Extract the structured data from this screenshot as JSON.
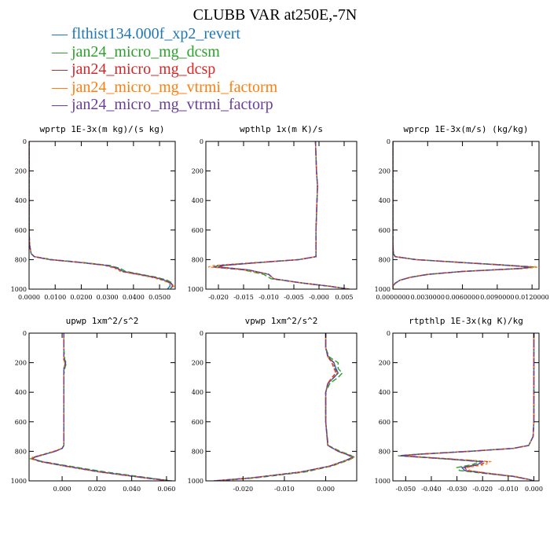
{
  "title": "CLUBB VAR at250E,-7N",
  "legend": [
    {
      "name": "flthist134.000f_xp2_revert",
      "color": "#1f77b4"
    },
    {
      "name": "jan24_micro_mg_dcsm",
      "color": "#2ca02c"
    },
    {
      "name": "jan24_micro_mg_dcsp",
      "color": "#d62728"
    },
    {
      "name": "jan24_micro_mg_vtrmi_factorm",
      "color": "#ff7f0e"
    },
    {
      "name": "jan24_micro_mg_vtrmi_factorp",
      "color": "#6a3d9a"
    }
  ],
  "chart_data": [
    {
      "type": "line",
      "title": "wprtp  1E-3x(m kg)/(s kg)",
      "xlim": [
        0.0,
        0.056
      ],
      "ylim": [
        1000,
        0
      ],
      "xticks": [
        0.0,
        0.01,
        0.02,
        0.03,
        0.04,
        0.05
      ],
      "xtick_labels": [
        "0.0000",
        "0.0100",
        "0.0200",
        "0.0300",
        "0.0400",
        "0.0500"
      ],
      "yticks": [
        0,
        200,
        400,
        600,
        800,
        1000
      ],
      "ytick_labels": [
        "0",
        "200",
        "400",
        "600",
        "800",
        "1000"
      ],
      "y": [
        0,
        200,
        400,
        600,
        700,
        760,
        780,
        800,
        820,
        840,
        860,
        880,
        900,
        920,
        940,
        960,
        980,
        1000
      ],
      "series": [
        {
          "values": [
            0,
            0,
            0,
            0,
            0.0002,
            0.0008,
            0.002,
            0.008,
            0.02,
            0.03,
            0.034,
            0.036,
            0.042,
            0.048,
            0.052,
            0.054,
            0.054,
            0.053
          ]
        },
        {
          "values": [
            0,
            0,
            0,
            0,
            0.0002,
            0.0008,
            0.002,
            0.009,
            0.021,
            0.031,
            0.035,
            0.037,
            0.043,
            0.049,
            0.053,
            0.055,
            0.055,
            0.054
          ]
        },
        {
          "values": [
            0,
            0,
            0,
            0,
            0.0002,
            0.0008,
            0.002,
            0.008,
            0.02,
            0.03,
            0.034,
            0.035,
            0.042,
            0.048,
            0.052,
            0.0545,
            0.055,
            0.0545
          ]
        },
        {
          "values": [
            0,
            0,
            0,
            0,
            0.0002,
            0.0008,
            0.002,
            0.008,
            0.02,
            0.029,
            0.033,
            0.035,
            0.041,
            0.047,
            0.051,
            0.054,
            0.0555,
            0.055
          ]
        },
        {
          "values": [
            0,
            0,
            0,
            0,
            0.0002,
            0.0008,
            0.002,
            0.008,
            0.02,
            0.03,
            0.034,
            0.036,
            0.042,
            0.048,
            0.052,
            0.0545,
            0.055,
            0.054
          ]
        }
      ]
    },
    {
      "type": "line",
      "title": "wpthlp  1x(m K)/s",
      "xlim": [
        -0.0225,
        0.0075
      ],
      "ylim": [
        1000,
        0
      ],
      "xticks": [
        -0.02,
        -0.015,
        -0.01,
        -0.005,
        0.0,
        0.005
      ],
      "xtick_labels": [
        "-0.020",
        "-0.015",
        "-0.010",
        "-0.005",
        "-0.000",
        "0.005"
      ],
      "yticks": [
        0,
        200,
        400,
        600,
        800,
        1000
      ],
      "ytick_labels": [
        "0",
        "200",
        "400",
        "600",
        "800",
        "1000"
      ],
      "y": [
        0,
        100,
        200,
        300,
        400,
        500,
        600,
        700,
        780,
        800,
        820,
        840,
        850,
        870,
        900,
        930,
        960,
        980,
        1000
      ],
      "series": [
        {
          "values": [
            -0.0007,
            -0.0006,
            -0.0005,
            -0.0003,
            -0.0004,
            -0.0005,
            -0.0006,
            -0.0006,
            -0.0006,
            -0.004,
            -0.012,
            -0.019,
            -0.02,
            -0.014,
            -0.01,
            -0.009,
            -0.003,
            0.002,
            0.006
          ]
        },
        {
          "values": [
            -0.0007,
            -0.0006,
            -0.0005,
            -0.0003,
            -0.0004,
            -0.0005,
            -0.0006,
            -0.0006,
            -0.0006,
            -0.004,
            -0.012,
            -0.02,
            -0.021,
            -0.015,
            -0.011,
            -0.0095,
            -0.003,
            0.002,
            0.006
          ]
        },
        {
          "values": [
            -0.0007,
            -0.0006,
            -0.0005,
            -0.0003,
            -0.0004,
            -0.0005,
            -0.0006,
            -0.0006,
            -0.0006,
            -0.004,
            -0.012,
            -0.019,
            -0.02,
            -0.014,
            -0.01,
            -0.009,
            -0.003,
            0.002,
            0.006
          ]
        },
        {
          "values": [
            -0.0007,
            -0.0006,
            -0.0005,
            -0.0003,
            -0.0004,
            -0.0005,
            -0.0006,
            -0.0006,
            -0.0006,
            -0.004,
            -0.013,
            -0.021,
            -0.022,
            -0.015,
            -0.01,
            -0.009,
            -0.003,
            0.002,
            0.006
          ]
        },
        {
          "values": [
            -0.0007,
            -0.0006,
            -0.0005,
            -0.0003,
            -0.0004,
            -0.0005,
            -0.0006,
            -0.0006,
            -0.0006,
            -0.004,
            -0.012,
            -0.02,
            -0.021,
            -0.014,
            -0.01,
            -0.009,
            -0.003,
            0.002,
            0.006
          ]
        }
      ]
    },
    {
      "type": "line",
      "title": "wprcp  1E-3x(m/s) (kg/kg)",
      "xlim": [
        0.0,
        0.0126
      ],
      "ylim": [
        1000,
        0
      ],
      "xticks": [
        0.0,
        0.003,
        0.006,
        0.009,
        0.012
      ],
      "xtick_labels": [
        "0.0000000",
        "0.0030000",
        "0.0060000",
        "0.0090000",
        "0.0120000"
      ],
      "yticks": [
        0,
        200,
        400,
        600,
        800,
        1000
      ],
      "ytick_labels": [
        "0",
        "200",
        "400",
        "600",
        "800",
        "1000"
      ],
      "y": [
        0,
        200,
        400,
        600,
        700,
        760,
        780,
        800,
        820,
        840,
        850,
        860,
        880,
        900,
        920,
        940,
        960,
        980,
        1000
      ],
      "series": [
        {
          "values": [
            0,
            0,
            0,
            0,
            0,
            5e-05,
            0.0002,
            0.002,
            0.006,
            0.01,
            0.0118,
            0.011,
            0.006,
            0.003,
            0.0015,
            0.0006,
            0.0002,
            0,
            0
          ]
        },
        {
          "values": [
            0,
            0,
            0,
            0,
            0,
            5e-05,
            0.0002,
            0.002,
            0.0062,
            0.0104,
            0.0122,
            0.0112,
            0.0062,
            0.0031,
            0.0015,
            0.0006,
            0.0002,
            0,
            0
          ]
        },
        {
          "values": [
            0,
            0,
            0,
            0,
            0,
            5e-05,
            0.0002,
            0.002,
            0.006,
            0.0102,
            0.012,
            0.011,
            0.006,
            0.003,
            0.0015,
            0.0006,
            0.0002,
            0,
            0
          ]
        },
        {
          "values": [
            0,
            0,
            0,
            0,
            0,
            5e-05,
            0.0002,
            0.0019,
            0.0058,
            0.01,
            0.0125,
            0.0115,
            0.0061,
            0.003,
            0.0015,
            0.0006,
            0.0002,
            0,
            0
          ]
        },
        {
          "values": [
            0,
            0,
            0,
            0,
            0,
            5e-05,
            0.0002,
            0.002,
            0.006,
            0.0101,
            0.0119,
            0.011,
            0.006,
            0.003,
            0.0015,
            0.0006,
            0.0002,
            0,
            0
          ]
        }
      ]
    },
    {
      "type": "line",
      "title": "upwp  1xm^2/s^2",
      "xlim": [
        -0.019,
        0.065
      ],
      "ylim": [
        1000,
        0
      ],
      "xticks": [
        0.0,
        0.02,
        0.04,
        0.06
      ],
      "xtick_labels": [
        "0.000",
        "0.020",
        "0.040",
        "0.060"
      ],
      "yticks": [
        0,
        200,
        400,
        600,
        800,
        1000
      ],
      "ytick_labels": [
        "0",
        "200",
        "400",
        "600",
        "800",
        "1000"
      ],
      "y": [
        0,
        100,
        180,
        200,
        240,
        280,
        400,
        600,
        760,
        780,
        800,
        820,
        840,
        850,
        870,
        900,
        940,
        980,
        1000
      ],
      "series": [
        {
          "values": [
            0.001,
            0.001,
            0.001,
            0.002,
            0.001,
            0.001,
            0.001,
            0.001,
            0.001,
            0,
            -0.004,
            -0.01,
            -0.016,
            -0.017,
            -0.012,
            0.002,
            0.022,
            0.048,
            0.062
          ]
        },
        {
          "values": [
            0.001,
            0.001,
            0.0015,
            0.0025,
            0.0015,
            0.001,
            0.001,
            0.001,
            0.001,
            0,
            -0.004,
            -0.01,
            -0.016,
            -0.018,
            -0.011,
            0.004,
            0.025,
            0.05,
            0.063
          ]
        },
        {
          "values": [
            0.001,
            0.001,
            0.001,
            0.002,
            0.001,
            0.001,
            0.001,
            0.001,
            0.001,
            0,
            -0.004,
            -0.01,
            -0.016,
            -0.017,
            -0.012,
            0.002,
            0.022,
            0.048,
            0.062
          ]
        },
        {
          "values": [
            0.001,
            0.001,
            0.001,
            0.0015,
            0.001,
            0.001,
            0.001,
            0.001,
            0.001,
            0,
            -0.005,
            -0.011,
            -0.017,
            -0.018,
            -0.013,
            0.001,
            0.021,
            0.047,
            0.061
          ]
        },
        {
          "values": [
            0.001,
            0.001,
            0.001,
            0.002,
            0.001,
            0.001,
            0.001,
            0.001,
            0.001,
            0,
            -0.004,
            -0.01,
            -0.016,
            -0.017,
            -0.012,
            0.002,
            0.022,
            0.048,
            0.062
          ]
        }
      ]
    },
    {
      "type": "line",
      "title": "vpwp  1xm^2/s^2",
      "xlim": [
        -0.029,
        0.0075
      ],
      "ylim": [
        1000,
        0
      ],
      "xticks": [
        -0.02,
        -0.01,
        0.0
      ],
      "xtick_labels": [
        "-0.020",
        "-0.010",
        "0.000"
      ],
      "yticks": [
        0,
        200,
        400,
        600,
        800,
        1000
      ],
      "ytick_labels": [
        "0",
        "200",
        "400",
        "600",
        "800",
        "1000"
      ],
      "y": [
        0,
        100,
        160,
        200,
        240,
        270,
        300,
        340,
        400,
        600,
        760,
        800,
        820,
        840,
        860,
        900,
        940,
        980,
        1000
      ],
      "series": [
        {
          "values": [
            0,
            0,
            0.0005,
            0.002,
            0.0025,
            0.003,
            0.002,
            0.0005,
            0,
            0,
            0.0005,
            0.003,
            0.005,
            0.0065,
            0.005,
            0.001,
            -0.006,
            -0.018,
            -0.027
          ]
        },
        {
          "values": [
            0,
            0,
            0.0008,
            0.003,
            0.003,
            0.004,
            0.003,
            0.001,
            0,
            0,
            0.0006,
            0.0035,
            0.0055,
            0.007,
            0.0055,
            0.0015,
            -0.005,
            -0.017,
            -0.026
          ]
        },
        {
          "values": [
            0,
            0,
            0.0005,
            0.0015,
            0.002,
            0.0025,
            0.0015,
            0.0005,
            0,
            0,
            0.0005,
            0.003,
            0.005,
            0.0065,
            0.005,
            0.001,
            -0.006,
            -0.018,
            -0.027
          ]
        },
        {
          "values": [
            0,
            0,
            0.0005,
            0.0018,
            0.002,
            0.0028,
            0.0018,
            0.0005,
            0,
            0,
            0.0005,
            0.003,
            0.0052,
            0.0068,
            0.0052,
            0.0012,
            -0.006,
            -0.018,
            -0.027
          ]
        },
        {
          "values": [
            0,
            0,
            0.0006,
            0.002,
            0.0022,
            0.003,
            0.002,
            0.0006,
            0,
            0,
            0.0005,
            0.003,
            0.005,
            0.0066,
            0.005,
            0.001,
            -0.006,
            -0.018,
            -0.027
          ]
        }
      ]
    },
    {
      "type": "line",
      "title": "rtpthlp  1E-3x(kg K)/kg",
      "xlim": [
        -0.055,
        0.002
      ],
      "ylim": [
        1000,
        0
      ],
      "xticks": [
        -0.05,
        -0.04,
        -0.03,
        -0.02,
        -0.01,
        0.0
      ],
      "xtick_labels": [
        "-0.050",
        "-0.040",
        "-0.030",
        "-0.020",
        "-0.010",
        "0.000"
      ],
      "yticks": [
        0,
        200,
        400,
        600,
        800,
        1000
      ],
      "ytick_labels": [
        "0",
        "200",
        "400",
        "600",
        "800",
        "1000"
      ],
      "y": [
        0,
        200,
        400,
        600,
        700,
        760,
        780,
        800,
        820,
        830,
        850,
        870,
        890,
        910,
        930,
        950,
        970,
        990,
        1000
      ],
      "series": [
        {
          "values": [
            0,
            0,
            0,
            0,
            -0.0003,
            -0.002,
            -0.008,
            -0.025,
            -0.045,
            -0.052,
            -0.035,
            -0.02,
            -0.022,
            -0.028,
            -0.027,
            -0.018,
            -0.008,
            -0.002,
            0
          ]
        },
        {
          "values": [
            0,
            0,
            0,
            0,
            -0.0003,
            -0.002,
            -0.008,
            -0.026,
            -0.046,
            -0.053,
            -0.036,
            -0.021,
            -0.024,
            -0.03,
            -0.029,
            -0.019,
            -0.008,
            -0.002,
            0
          ]
        },
        {
          "values": [
            0,
            0,
            0,
            0,
            -0.0003,
            -0.002,
            -0.008,
            -0.025,
            -0.045,
            -0.052,
            -0.034,
            -0.018,
            -0.021,
            -0.027,
            -0.026,
            -0.017,
            -0.008,
            -0.002,
            0
          ]
        },
        {
          "values": [
            0,
            0,
            0,
            0,
            -0.0003,
            -0.002,
            -0.008,
            -0.025,
            -0.044,
            -0.051,
            -0.033,
            -0.017,
            -0.019,
            -0.026,
            -0.025,
            -0.017,
            -0.007,
            -0.002,
            0
          ]
        },
        {
          "values": [
            0,
            0,
            0,
            0,
            -0.0003,
            -0.002,
            -0.008,
            -0.025,
            -0.045,
            -0.052,
            -0.035,
            -0.02,
            -0.022,
            -0.028,
            -0.027,
            -0.018,
            -0.008,
            -0.002,
            0
          ]
        }
      ]
    }
  ]
}
